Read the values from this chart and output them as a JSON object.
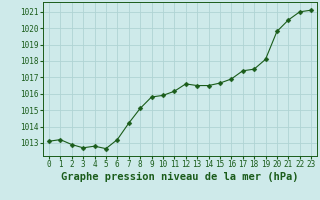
{
  "x": [
    0,
    1,
    2,
    3,
    4,
    5,
    6,
    7,
    8,
    9,
    10,
    11,
    12,
    13,
    14,
    15,
    16,
    17,
    18,
    19,
    20,
    21,
    22,
    23
  ],
  "y": [
    1013.1,
    1013.2,
    1012.9,
    1012.7,
    1012.8,
    1012.65,
    1013.2,
    1014.2,
    1015.1,
    1015.8,
    1015.9,
    1016.15,
    1016.6,
    1016.5,
    1016.5,
    1016.65,
    1016.9,
    1017.4,
    1017.5,
    1018.1,
    1019.8,
    1020.5,
    1021.0,
    1021.1
  ],
  "line_color": "#1a5c1a",
  "marker": "D",
  "marker_size": 2.5,
  "bg_color": "#ceeaea",
  "grid_color": "#b0d4d4",
  "xlabel": "Graphe pression niveau de la mer (hPa)",
  "xlabel_color": "#1a5c1a",
  "ylabel_ticks": [
    1013,
    1014,
    1015,
    1016,
    1017,
    1018,
    1019,
    1020,
    1021
  ],
  "ylim": [
    1012.2,
    1021.6
  ],
  "xlim": [
    -0.5,
    23.5
  ],
  "xtick_labels": [
    "0",
    "1",
    "2",
    "3",
    "4",
    "5",
    "6",
    "7",
    "8",
    "9",
    "10",
    "11",
    "12",
    "13",
    "14",
    "15",
    "16",
    "17",
    "18",
    "19",
    "20",
    "21",
    "22",
    "23"
  ],
  "tick_color": "#1a5c1a",
  "spine_color": "#1a5c1a",
  "font_size_ticks": 5.5,
  "font_size_xlabel": 7.5,
  "linewidth": 0.8
}
